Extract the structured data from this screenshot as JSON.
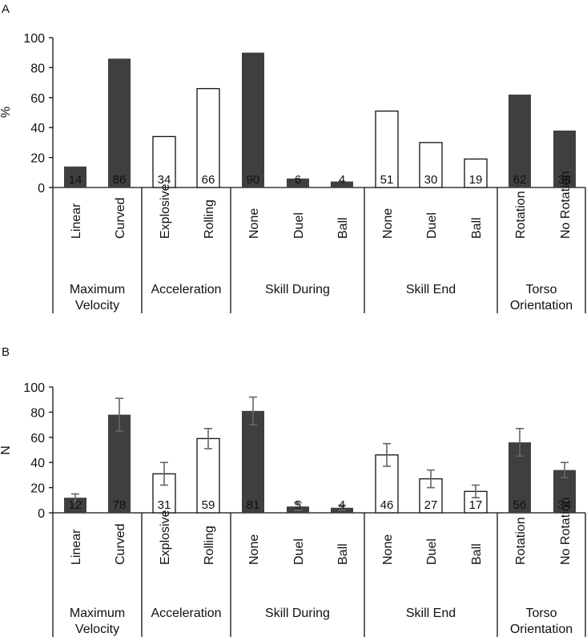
{
  "chart_data": [
    {
      "type": "bar",
      "panel_label": "A",
      "ylabel": "%",
      "ylim": [
        0,
        100
      ],
      "yticks": [
        "0",
        "20",
        "40",
        "60",
        "80",
        "100"
      ],
      "grid": false,
      "error_bars": false,
      "categories": [
        "Linear",
        "Curved",
        "Explosive",
        "Rolling",
        "None",
        "Duel",
        "Ball",
        "None",
        "Duel",
        "Ball",
        "Rotation",
        "No Rotation"
      ],
      "values": [
        14,
        86,
        34,
        66,
        90,
        6,
        4,
        51,
        30,
        19,
        62,
        38
      ],
      "value_labels": [
        "14",
        "86",
        "34",
        "66",
        "90",
        "6",
        "4",
        "51",
        "30",
        "19",
        "62",
        "38"
      ],
      "fills": [
        "dark",
        "dark",
        "white",
        "white",
        "dark",
        "dark",
        "dark",
        "white",
        "white",
        "white",
        "dark",
        "dark"
      ],
      "groups": [
        {
          "lines": [
            "Maximum",
            "Velocity"
          ],
          "count": 2
        },
        {
          "lines": [
            "Acceleration"
          ],
          "count": 2
        },
        {
          "lines": [
            "Skill During"
          ],
          "count": 3
        },
        {
          "lines": [
            "Skill End"
          ],
          "count": 3
        },
        {
          "lines": [
            "Torso",
            "Orientation"
          ],
          "count": 2
        }
      ]
    },
    {
      "type": "bar",
      "panel_label": "B",
      "ylabel": "N",
      "ylim": [
        0,
        100
      ],
      "yticks": [
        "0",
        "20",
        "40",
        "60",
        "80",
        "100"
      ],
      "grid": false,
      "error_bars": true,
      "categories": [
        "Linear",
        "Curved",
        "Explosive",
        "Rolling",
        "None",
        "Duel",
        "Ball",
        "None",
        "Duel",
        "Ball",
        "Rotation",
        "No Rotation"
      ],
      "values": [
        12,
        78,
        31,
        59,
        81,
        5,
        4,
        46,
        27,
        17,
        56,
        34
      ],
      "errors": [
        3,
        13,
        9,
        8,
        11,
        3,
        2,
        9,
        7,
        5,
        11,
        6
      ],
      "value_labels": [
        "12",
        "78",
        "31",
        "59",
        "81",
        "5",
        "4",
        "46",
        "27",
        "17",
        "56",
        "34"
      ],
      "fills": [
        "dark",
        "dark",
        "white",
        "white",
        "dark",
        "dark",
        "dark",
        "white",
        "white",
        "white",
        "dark",
        "dark"
      ],
      "groups": [
        {
          "lines": [
            "Maximum",
            "Velocity"
          ],
          "count": 2
        },
        {
          "lines": [
            "Acceleration"
          ],
          "count": 2
        },
        {
          "lines": [
            "Skill During"
          ],
          "count": 3
        },
        {
          "lines": [
            "Skill End"
          ],
          "count": 3
        },
        {
          "lines": [
            "Torso",
            "Orientation"
          ],
          "count": 2
        }
      ]
    }
  ],
  "colors": {
    "dark_fill": "#3f3f3f",
    "light_fill": "#ffffff",
    "bar_edge": "#111111",
    "axis": "#111111",
    "error_bar": "#666666",
    "label_on_dark": "#ffffff",
    "label_on_light": "#111111"
  }
}
